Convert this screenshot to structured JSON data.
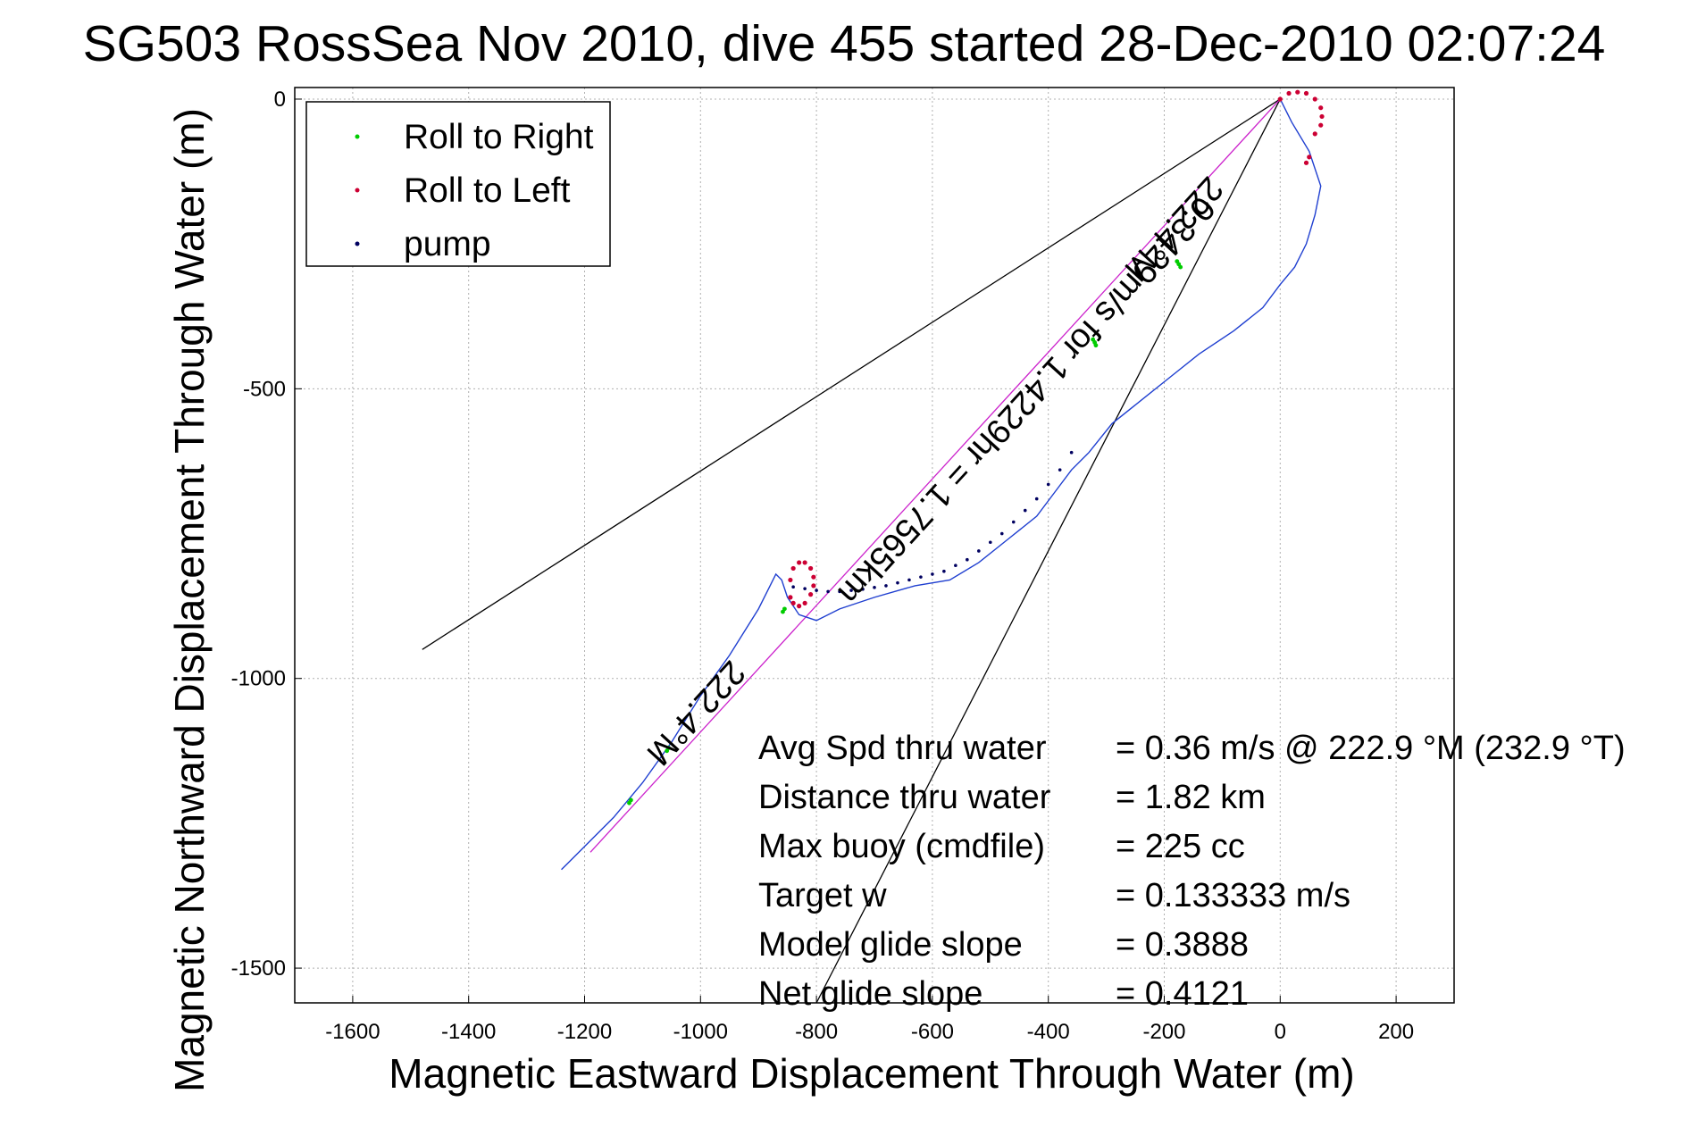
{
  "chart_data": {
    "type": "scatter",
    "title": "SG503 RossSea Nov 2010, dive 455 started 28-Dec-2010 02:07:24",
    "xlabel": "Magnetic Eastward Displacement Through Water (m)",
    "ylabel": "Magnetic Northward Displacement Through Water (m)",
    "xlim": [
      -1700,
      300
    ],
    "ylim": [
      -1560,
      20
    ],
    "xticks": [
      -1600,
      -1400,
      -1200,
      -1000,
      -800,
      -600,
      -400,
      -200,
      0,
      200
    ],
    "yticks": [
      0,
      -500,
      -1000,
      -1500
    ],
    "grid": true,
    "legend_position": "top-left",
    "legend": [
      "Roll to Right",
      "Roll to Left",
      "pump"
    ],
    "colors": {
      "track": "#1f3fd0",
      "roll_right": "#00cc00",
      "roll_left": "#cc0033",
      "pump": "#000060",
      "heading_line": "#cc22cc",
      "cone_lines": "#000000",
      "grid": "#b0b0b0"
    },
    "series": [
      {
        "name": "track",
        "x": [
          0,
          20,
          50,
          70,
          60,
          45,
          25,
          0,
          -30,
          -80,
          -140,
          -190,
          -240,
          -290,
          -330,
          -360,
          -390,
          -420,
          -470,
          -520,
          -570,
          -630,
          -700,
          -760,
          -800,
          -830,
          -850,
          -860,
          -870,
          -880,
          -900,
          -950,
          -1000,
          -1050,
          -1100,
          -1150,
          -1200,
          -1240
        ],
        "y": [
          0,
          -40,
          -90,
          -150,
          -200,
          -250,
          -290,
          -320,
          -360,
          -400,
          -440,
          -480,
          -520,
          -560,
          -610,
          -640,
          -680,
          -720,
          -760,
          -800,
          -830,
          -840,
          -860,
          -880,
          -900,
          -890,
          -860,
          -830,
          -820,
          -840,
          -880,
          -960,
          -1030,
          -1110,
          -1180,
          -1240,
          -1290,
          -1330
        ]
      },
      {
        "name": "Roll to Right",
        "x": [
          -175,
          -172,
          -178,
          -320,
          -318,
          -323,
          -855,
          -858,
          -1055,
          -1058,
          -1120,
          -1123
        ],
        "y": [
          -285,
          -290,
          -280,
          -420,
          -425,
          -415,
          -880,
          -885,
          -1120,
          -1125,
          -1210,
          -1215
        ]
      },
      {
        "name": "Roll to Left",
        "x": [
          0,
          15,
          30,
          45,
          60,
          70,
          72,
          70,
          60,
          50,
          45,
          -820,
          -810,
          -805,
          -805,
          -810,
          -820,
          -830,
          -840,
          -845,
          -845,
          -840,
          -830
        ],
        "y": [
          0,
          10,
          12,
          10,
          0,
          -15,
          -30,
          -45,
          -60,
          -100,
          -110,
          -800,
          -810,
          -825,
          -840,
          -855,
          -870,
          -875,
          -870,
          -860,
          -830,
          -810,
          -800
        ]
      },
      {
        "name": "pump",
        "x": [
          -360,
          -380,
          -400,
          -420,
          -440,
          -460,
          -480,
          -500,
          -520,
          -540,
          -560,
          -580,
          -600,
          -620,
          -640,
          -660,
          -680,
          -700,
          -720,
          -740,
          -760,
          -780,
          -800,
          -820,
          -840
        ],
        "y": [
          -610,
          -640,
          -665,
          -690,
          -710,
          -730,
          -750,
          -765,
          -780,
          -795,
          -805,
          -815,
          -820,
          -825,
          -830,
          -835,
          -840,
          -843,
          -846,
          -848,
          -850,
          -850,
          -848,
          -845,
          -842
        ]
      }
    ],
    "heading_line": {
      "x": [
        0,
        -1190
      ],
      "y": [
        0,
        -1300
      ],
      "heading_label": "222.4°M",
      "heading_label_far": "222.4°M",
      "distance_label": "0.3429m/s for 1.4229hr = 1.7565km"
    },
    "cone_lines": [
      {
        "x": [
          0,
          -1480
        ],
        "y": [
          0,
          -950
        ]
      },
      {
        "x": [
          0,
          -800
        ],
        "y": [
          0,
          -1560
        ]
      }
    ],
    "stats": [
      {
        "label": "Avg Spd thru water",
        "value": "=  0.36 m/s @ 222.9 °M (232.9 °T)"
      },
      {
        "label": "Distance thru water",
        "value": "=  1.82 km"
      },
      {
        "label": "Max buoy (cmdfile)",
        "value": "= 225 cc"
      },
      {
        "label": "Target w",
        "value": "= 0.133333 m/s"
      },
      {
        "label": "Model glide slope",
        "value": "= 0.3888"
      },
      {
        "label": "Net glide slope",
        "value": "= 0.4121"
      }
    ]
  }
}
